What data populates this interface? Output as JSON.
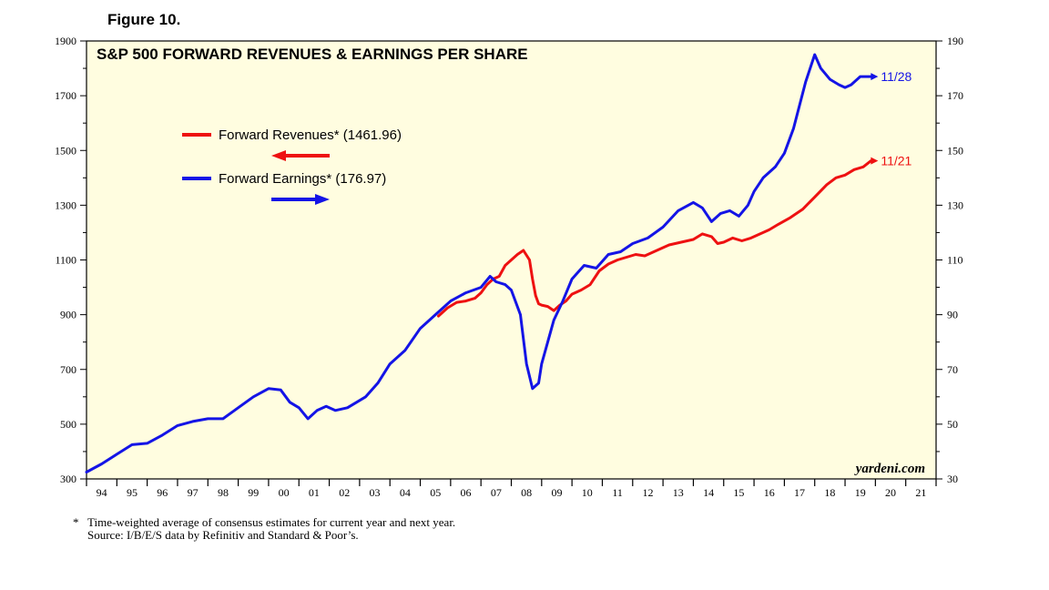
{
  "figure_label": "Figure 10.",
  "source_credit": "yardeni.com",
  "footnote": {
    "marker": "*",
    "line1": "Time-weighted average of consensus estimates for current year and next year.",
    "line2": "Source: I/B/E/S data by Refinitiv and Standard & Poor’s."
  },
  "colors": {
    "revenues": "#ee1111",
    "earnings": "#1414e6",
    "panel": "#fffde0"
  },
  "chart_data": {
    "type": "line",
    "title": "S&P 500 FORWARD REVENUES & EARNINGS PER SHARE",
    "x_ticks": [
      "94",
      "95",
      "96",
      "97",
      "98",
      "99",
      "00",
      "01",
      "02",
      "03",
      "04",
      "05",
      "06",
      "07",
      "08",
      "09",
      "10",
      "11",
      "12",
      "13",
      "14",
      "15",
      "16",
      "17",
      "18",
      "19",
      "20",
      "21"
    ],
    "x_range": [
      1994.0,
      2022.0
    ],
    "left_axis": {
      "range": [
        300,
        1900
      ],
      "ticks": [
        300,
        500,
        700,
        900,
        1100,
        1300,
        1500,
        1700,
        1900
      ]
    },
    "right_axis": {
      "range": [
        30,
        190
      ],
      "ticks": [
        30,
        50,
        70,
        90,
        110,
        130,
        150,
        170,
        190
      ]
    },
    "legend": [
      {
        "series": "revenues",
        "label": "Forward Revenues* (1461.96)",
        "arrow": "left"
      },
      {
        "series": "earnings",
        "label": "Forward Earnings* (176.97)",
        "arrow": "right"
      }
    ],
    "series": [
      {
        "key": "revenues",
        "name": "Forward Revenues",
        "axis": "left",
        "end_label": "11/21",
        "x": [
          2005.6,
          2005.9,
          2006.2,
          2006.5,
          2006.8,
          2007.0,
          2007.2,
          2007.4,
          2007.6,
          2007.8,
          2008.0,
          2008.2,
          2008.4,
          2008.6,
          2008.7,
          2008.8,
          2008.9,
          2009.0,
          2009.2,
          2009.4,
          2009.6,
          2009.8,
          2010.0,
          2010.3,
          2010.6,
          2010.9,
          2011.2,
          2011.5,
          2011.8,
          2012.1,
          2012.4,
          2012.8,
          2013.2,
          2013.6,
          2014.0,
          2014.3,
          2014.6,
          2014.8,
          2015.0,
          2015.3,
          2015.6,
          2015.9,
          2016.2,
          2016.5,
          2016.8,
          2017.2,
          2017.6,
          2018.0,
          2018.4,
          2018.7,
          2019.0,
          2019.3,
          2019.6,
          2019.85
        ],
        "values": [
          895,
          925,
          945,
          950,
          960,
          980,
          1010,
          1030,
          1040,
          1080,
          1100,
          1120,
          1135,
          1100,
          1030,
          970,
          940,
          935,
          930,
          915,
          935,
          950,
          975,
          990,
          1010,
          1060,
          1085,
          1100,
          1110,
          1120,
          1115,
          1135,
          1155,
          1165,
          1175,
          1195,
          1185,
          1160,
          1165,
          1180,
          1170,
          1180,
          1195,
          1210,
          1230,
          1255,
          1285,
          1330,
          1375,
          1400,
          1410,
          1430,
          1440,
          1462
        ]
      },
      {
        "key": "earnings",
        "name": "Forward Earnings",
        "axis": "right",
        "end_label": "11/28",
        "x": [
          1994.0,
          1994.5,
          1995.0,
          1995.5,
          1996.0,
          1996.5,
          1997.0,
          1997.5,
          1998.0,
          1998.5,
          1999.0,
          1999.5,
          2000.0,
          2000.4,
          2000.7,
          2001.0,
          2001.3,
          2001.6,
          2001.9,
          2002.2,
          2002.6,
          2002.9,
          2003.2,
          2003.6,
          2004.0,
          2004.5,
          2005.0,
          2005.5,
          2006.0,
          2006.5,
          2007.0,
          2007.3,
          2007.5,
          2007.8,
          2008.0,
          2008.3,
          2008.5,
          2008.7,
          2008.9,
          2009.0,
          2009.2,
          2009.4,
          2009.7,
          2010.0,
          2010.4,
          2010.8,
          2011.2,
          2011.6,
          2012.0,
          2012.5,
          2013.0,
          2013.5,
          2014.0,
          2014.3,
          2014.6,
          2014.9,
          2015.2,
          2015.5,
          2015.8,
          2016.0,
          2016.3,
          2016.7,
          2017.0,
          2017.3,
          2017.7,
          2018.0,
          2018.2,
          2018.5,
          2018.8,
          2019.0,
          2019.2,
          2019.5,
          2019.85
        ],
        "values": [
          32.5,
          35.5,
          39,
          42.5,
          43,
          46,
          49.5,
          51,
          52,
          52,
          56,
          60,
          63,
          62.5,
          58,
          56,
          52,
          55,
          56.5,
          55,
          56,
          58,
          60,
          65,
          72,
          77,
          85,
          90,
          95,
          98,
          100,
          104,
          102,
          101,
          99,
          90,
          72,
          63,
          65,
          72,
          80,
          88,
          95,
          103,
          108,
          107,
          112,
          113,
          116,
          118,
          122,
          128,
          131,
          129,
          124,
          127,
          128,
          126,
          130,
          135,
          140,
          144,
          149,
          158,
          175,
          185,
          180,
          176,
          174,
          173,
          174,
          177,
          177
        ]
      }
    ]
  }
}
